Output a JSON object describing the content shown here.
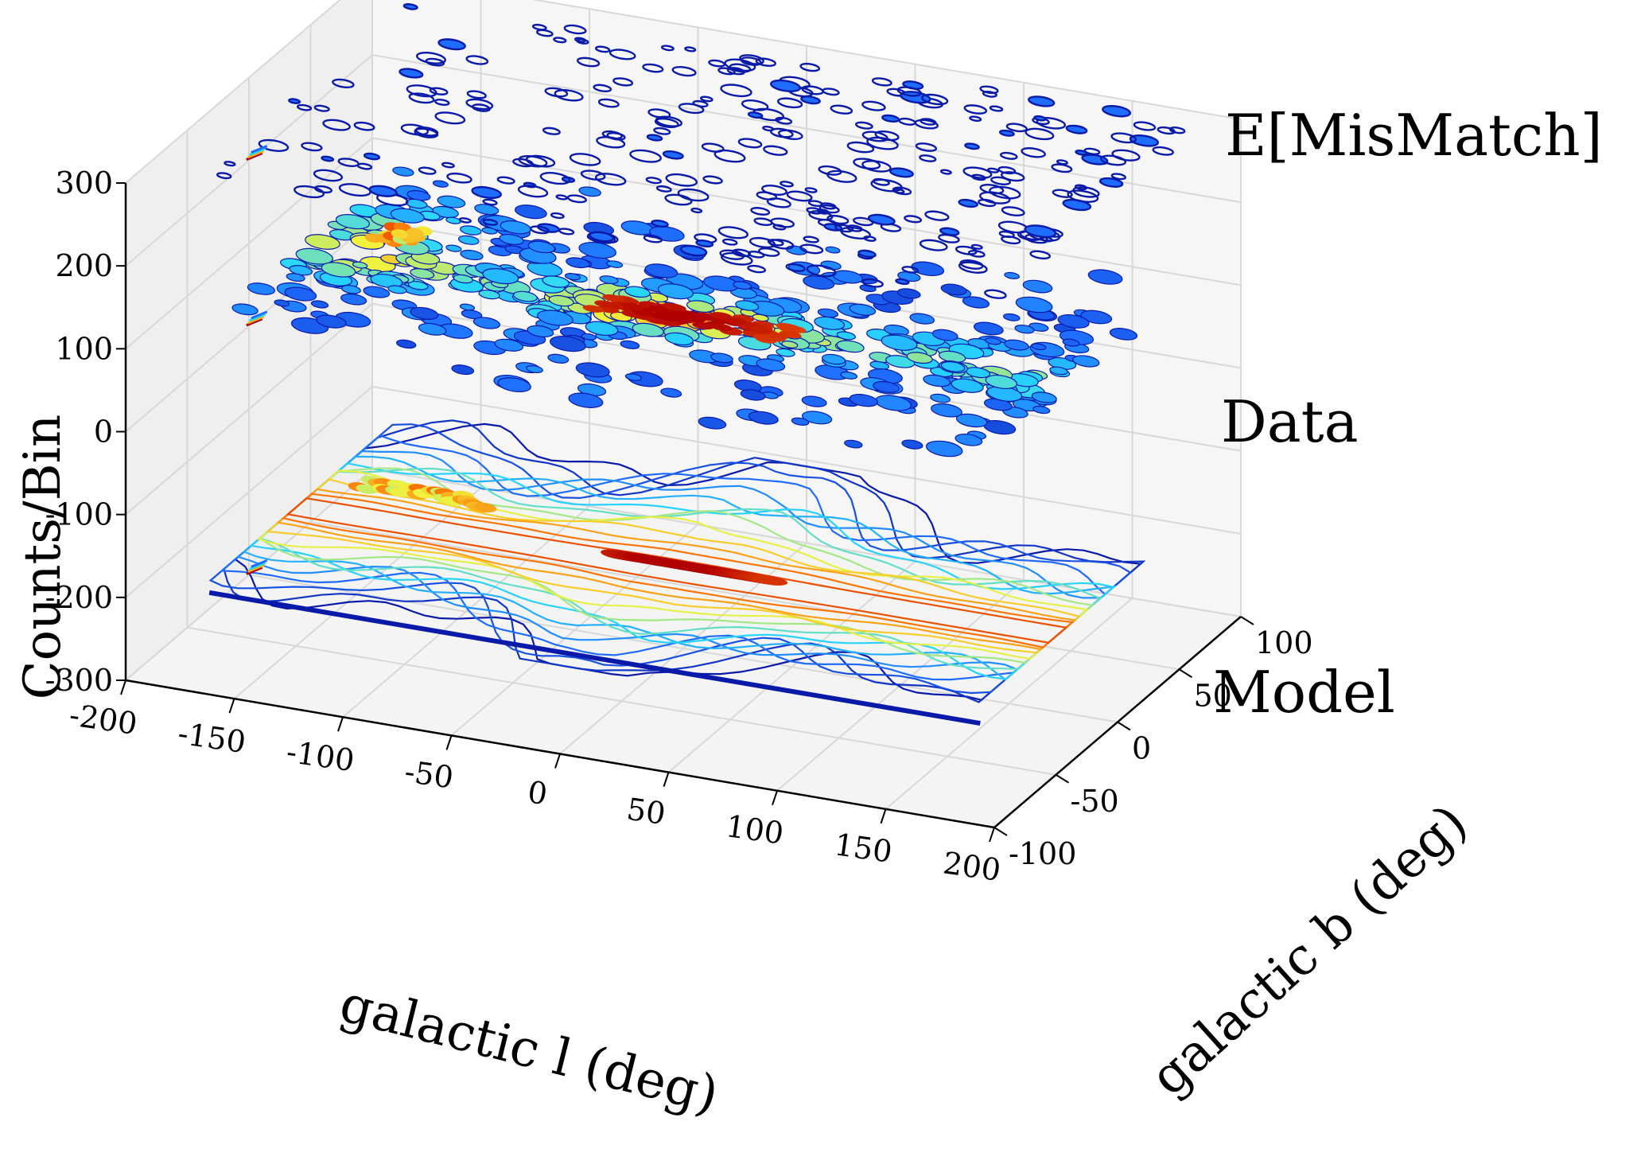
{
  "chart_data": {
    "type": "contour",
    "title": "",
    "xlabel": "galactic  l (deg)",
    "ylabel": "galactic  b (deg)",
    "zlabel": "Counts/Bin",
    "x_ticks": [
      -200,
      -150,
      -100,
      -50,
      0,
      50,
      100,
      150,
      200
    ],
    "x_tick_labels": [
      "-200",
      "-150",
      "-100",
      "-50",
      "0",
      "50",
      "100",
      "150",
      "200"
    ],
    "y_ticks": [
      -100,
      -50,
      0,
      50,
      100
    ],
    "y_tick_labels": [
      "-100",
      "-50",
      "0",
      "50",
      "100"
    ],
    "z_ticks": [
      -300,
      -200,
      -100,
      0,
      100,
      200,
      300
    ],
    "z_tick_labels": [
      "-300",
      "-200",
      "-100",
      "0",
      "100",
      "200",
      "300"
    ],
    "xlim": [
      -200,
      200
    ],
    "ylim": [
      -100,
      100
    ],
    "zlim": [
      -300,
      300
    ],
    "grid": true,
    "colormap": "jet",
    "series": [
      {
        "name": "E[MisMatch]",
        "z": 300,
        "description": "sparse blue contour islands"
      },
      {
        "name": "Data",
        "z": 100,
        "description": "filled contours with bright band along galactic plane, peak near l=0"
      },
      {
        "name": "Model",
        "z": -200,
        "description": "smooth contour lines with bright band along galactic plane, peak near l=0"
      }
    ]
  },
  "colors": {
    "low": "#0a1aa8",
    "mid_low": "#1f6dff",
    "mid": "#27d6ff",
    "mid_high": "#f2f23c",
    "high": "#ff6a00",
    "peak": "#b00000",
    "grid": "#d8d8d8",
    "pane": "#f4f4f4"
  }
}
